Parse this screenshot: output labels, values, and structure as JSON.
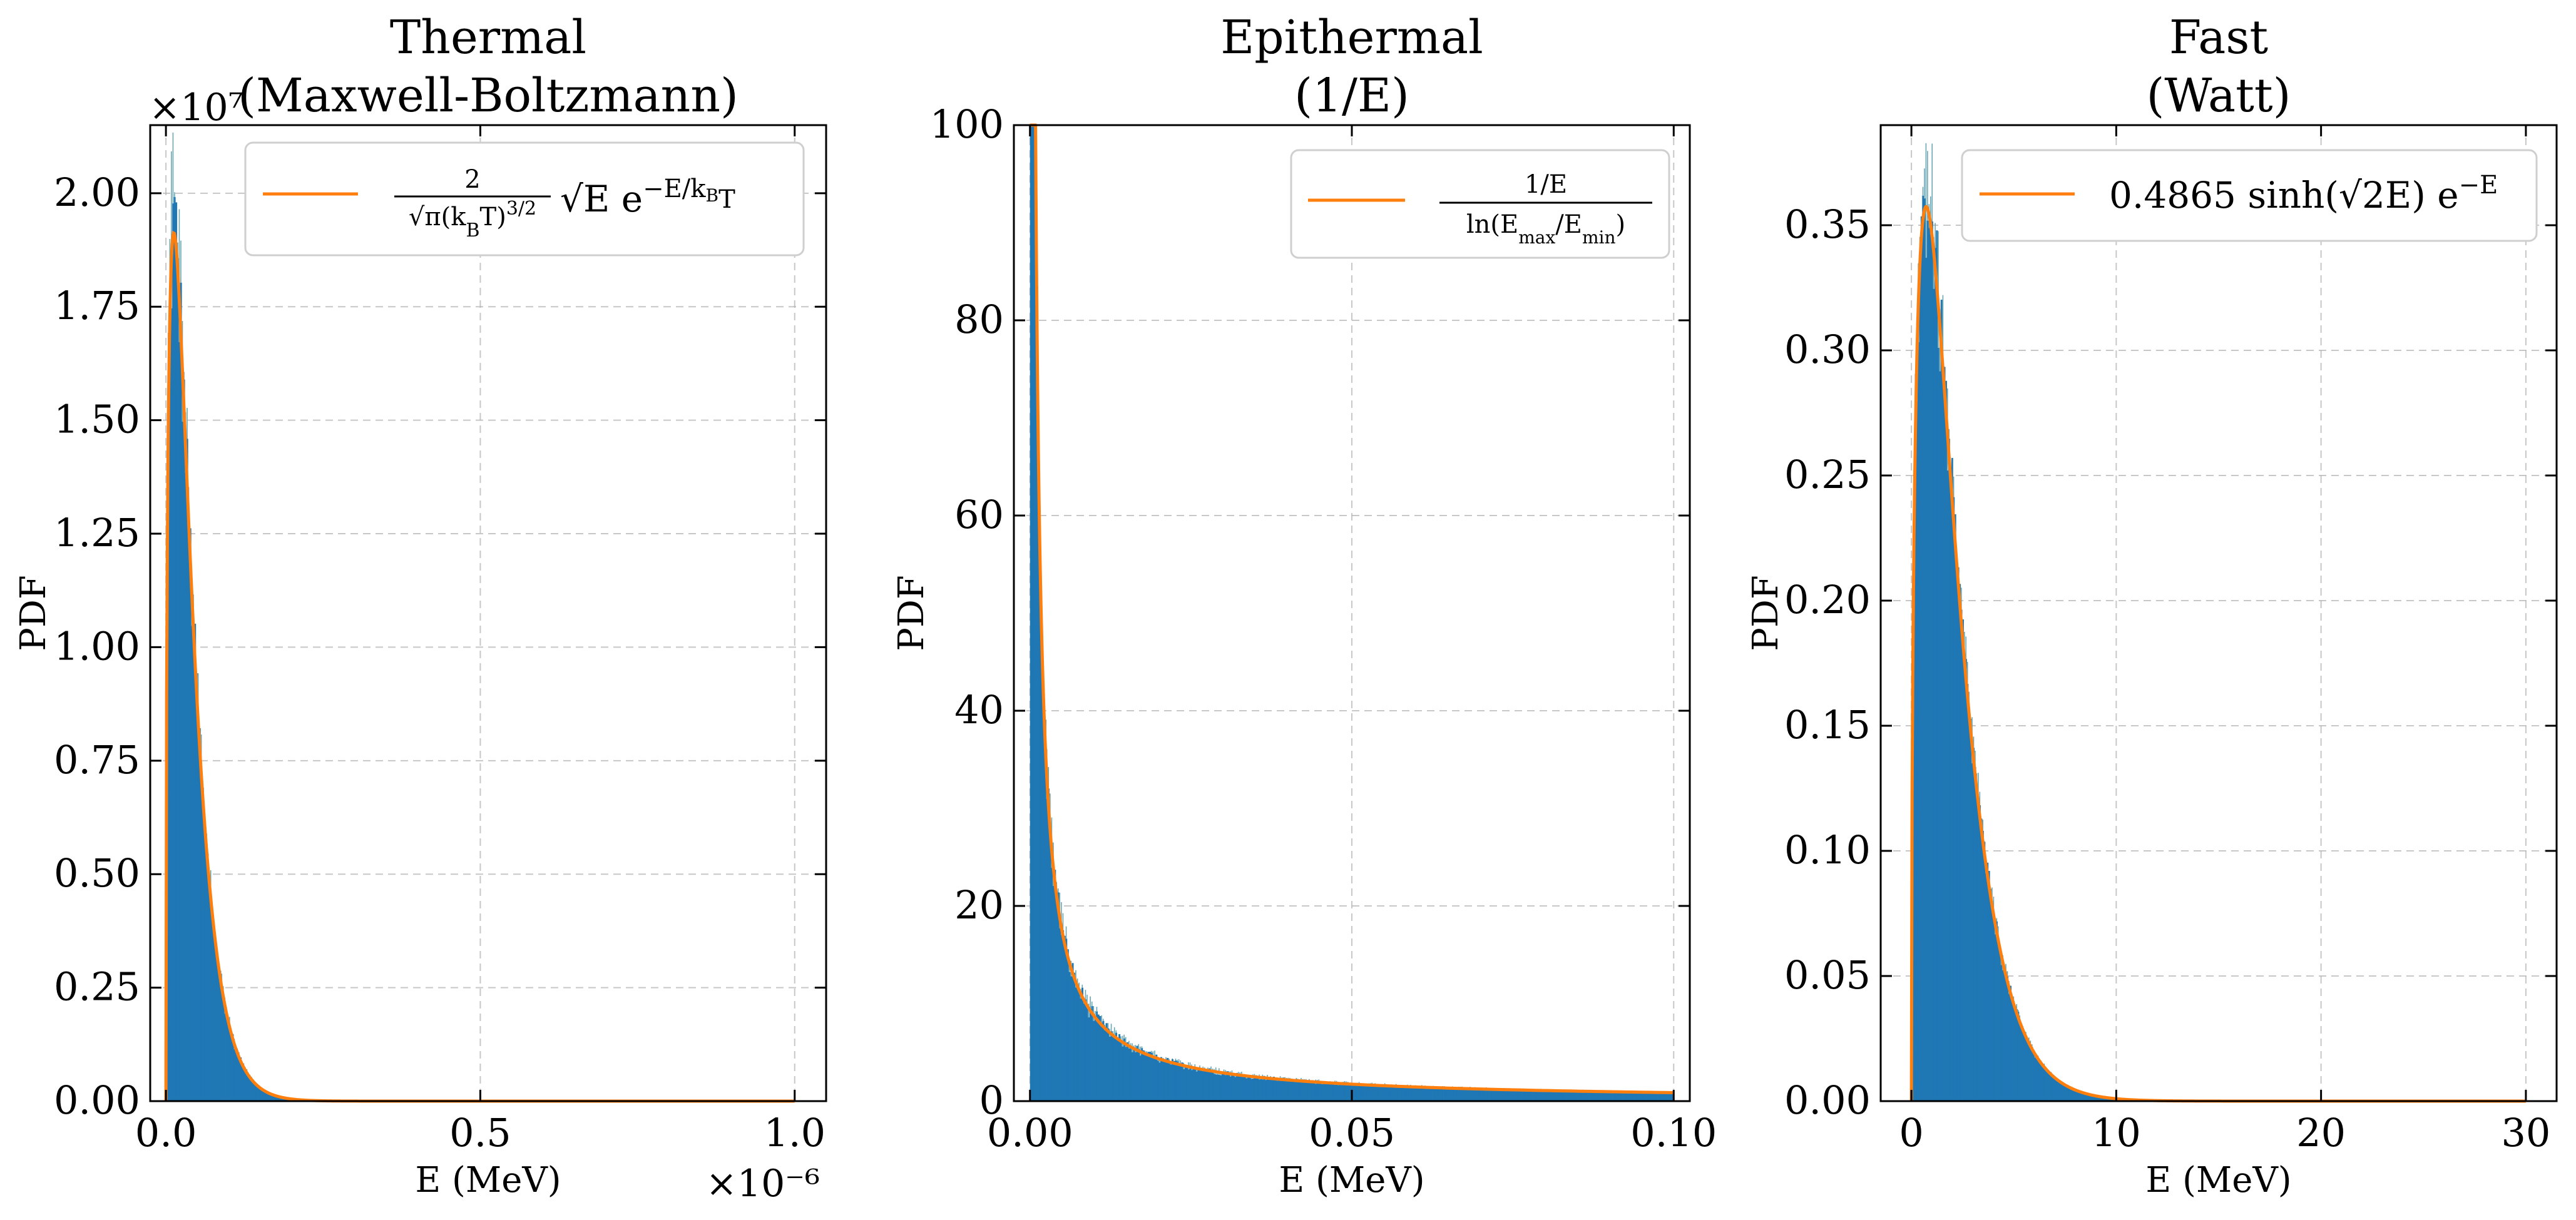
{
  "colors": {
    "histogram": "#1f77b4",
    "noise": "#6aa7b3",
    "curve": "#ff7f0e",
    "grid": "#b0b0b0",
    "axes": "#000000"
  },
  "chart_data": [
    {
      "type": "histogram",
      "title": [
        "Thermal",
        "(Maxwell-Boltzmann)"
      ],
      "xlabel": "E (MeV)",
      "ylabel": "PDF",
      "x_exponent_label": "×10⁻⁶",
      "y_exponent_label": "×10⁷",
      "xlim": [
        -2.5e-08,
        1.05e-06
      ],
      "ylim": [
        0,
        21500000
      ],
      "x_ticks": [
        0,
        5e-07,
        1e-06
      ],
      "x_tick_labels": [
        "0.0",
        "0.5",
        "1.0"
      ],
      "y_ticks": [
        0,
        2500000,
        5000000,
        7500000,
        10000000,
        12500000,
        15000000,
        17500000,
        20000000
      ],
      "y_tick_labels": [
        "0.00",
        "0.25",
        "0.50",
        "0.75",
        "1.00",
        "1.25",
        "1.50",
        "1.75",
        "2.00"
      ],
      "grid": true,
      "legend_position": "top-right",
      "series": [
        {
          "kind": "histogram",
          "bins_range": [
            0,
            1e-06
          ],
          "bin_count": 400,
          "noise": 0.09
        },
        {
          "kind": "line",
          "name": "2/(√π (k_BT)^(3/2)) √E e^(−E/k_BT)",
          "function": "maxwell_boltzmann",
          "kT": 2.53e-08
        }
      ],
      "legend": {
        "numerator": "2",
        "denominator": "√π(k",
        "den_sub": "B",
        "den_tail": "T)",
        "den_sup": "3/2",
        "main": "√E e",
        "exponent": "−E/k",
        "exp_sub": "B",
        "exp_tail": "T"
      }
    },
    {
      "type": "histogram",
      "title": [
        "Epithermal",
        "(1/E)"
      ],
      "xlabel": "E (MeV)",
      "ylabel": "PDF",
      "xlim": [
        -0.0025,
        0.1025
      ],
      "ylim": [
        0,
        100
      ],
      "x_ticks": [
        0,
        0.05,
        0.1
      ],
      "x_tick_labels": [
        "0.00",
        "0.05",
        "0.10"
      ],
      "y_ticks": [
        0,
        20,
        40,
        60,
        80,
        100
      ],
      "y_tick_labels": [
        "0",
        "20",
        "40",
        "60",
        "80",
        "100"
      ],
      "grid": true,
      "legend_position": "top-right",
      "series": [
        {
          "kind": "histogram",
          "bins_range": [
            1e-06,
            0.1
          ],
          "bin_count": 400,
          "noise": 0.1
        },
        {
          "kind": "line",
          "name": "(1/E)/ln(E_max/E_min)",
          "function": "one_over_e",
          "emin": 1e-06,
          "emax": 0.1
        }
      ],
      "legend": {
        "numerator": "1/E",
        "denominator": "ln(E",
        "sub1": "max",
        "mid": "/E",
        "sub2": "min",
        "tail": ")"
      }
    },
    {
      "type": "histogram",
      "title": [
        "Fast",
        "(Watt)"
      ],
      "xlabel": "E (MeV)",
      "ylabel": "PDF",
      "xlim": [
        -1.5,
        31.5
      ],
      "ylim": [
        0,
        0.39
      ],
      "x_ticks": [
        0,
        10,
        20,
        30
      ],
      "x_tick_labels": [
        "0",
        "10",
        "20",
        "30"
      ],
      "y_ticks": [
        0,
        0.05,
        0.1,
        0.15,
        0.2,
        0.25,
        0.3,
        0.35
      ],
      "y_tick_labels": [
        "0.00",
        "0.05",
        "0.10",
        "0.15",
        "0.20",
        "0.25",
        "0.30",
        "0.35"
      ],
      "grid": true,
      "legend_position": "top-right",
      "series": [
        {
          "kind": "histogram",
          "bins_range": [
            0,
            30
          ],
          "bin_count": 400,
          "noise": 0.07
        },
        {
          "kind": "line",
          "name": "0.4865 sinh(√(2E)) e^(−E)",
          "function": "watt",
          "coef": 0.4865
        }
      ],
      "legend": {
        "main": "0.4865 sinh(√2E) e",
        "exponent": "−E"
      }
    }
  ]
}
